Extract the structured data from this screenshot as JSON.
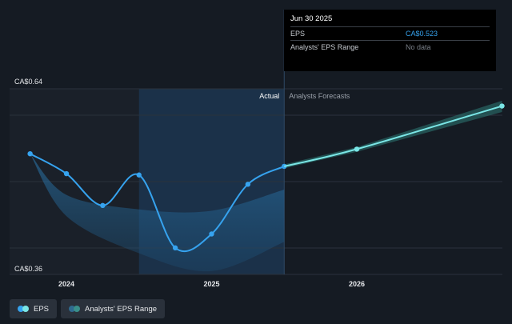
{
  "chart_data": {
    "type": "line",
    "y_top_label": "CA$0.64",
    "y_bottom_label": "CA$0.36",
    "ylim": [
      0.36,
      0.64
    ],
    "x_ticks": [
      {
        "label": "2024",
        "x": 2024.0
      },
      {
        "label": "2025",
        "x": 2025.0
      },
      {
        "label": "2026",
        "x": 2026.0
      }
    ],
    "xlim": [
      2023.6,
      2027.0
    ],
    "section_labels": {
      "actual": "Actual",
      "forecast": "Analysts Forecasts"
    },
    "divider_x": 2025.5,
    "series": [
      {
        "name": "EPS",
        "color": "#36a3ef",
        "points": [
          {
            "x": 2023.75,
            "y": 0.542
          },
          {
            "x": 2024.0,
            "y": 0.512
          },
          {
            "x": 2024.25,
            "y": 0.464
          },
          {
            "x": 2024.5,
            "y": 0.51
          },
          {
            "x": 2024.75,
            "y": 0.4
          },
          {
            "x": 2025.0,
            "y": 0.421
          },
          {
            "x": 2025.25,
            "y": 0.496
          },
          {
            "x": 2025.5,
            "y": 0.523
          }
        ]
      },
      {
        "name": "EPS forecast",
        "color": "#7ae6e6",
        "points": [
          {
            "x": 2025.5,
            "y": 0.523
          },
          {
            "x": 2026.0,
            "y": 0.549
          },
          {
            "x": 2027.0,
            "y": 0.614
          }
        ]
      }
    ],
    "range_band": {
      "upper": [
        {
          "x": 2023.75,
          "y": 0.542
        },
        {
          "x": 2024.0,
          "y": 0.48
        },
        {
          "x": 2024.5,
          "y": 0.458
        },
        {
          "x": 2025.0,
          "y": 0.456
        },
        {
          "x": 2025.5,
          "y": 0.488
        }
      ],
      "lower": [
        {
          "x": 2023.75,
          "y": 0.542
        },
        {
          "x": 2024.0,
          "y": 0.448
        },
        {
          "x": 2024.5,
          "y": 0.392
        },
        {
          "x": 2025.0,
          "y": 0.365
        },
        {
          "x": 2025.5,
          "y": 0.409
        }
      ]
    },
    "forecast_band": {
      "upper": [
        {
          "x": 2025.5,
          "y": 0.526
        },
        {
          "x": 2026.0,
          "y": 0.552
        },
        {
          "x": 2027.0,
          "y": 0.622
        }
      ],
      "lower": [
        {
          "x": 2025.5,
          "y": 0.52
        },
        {
          "x": 2026.0,
          "y": 0.545
        },
        {
          "x": 2027.0,
          "y": 0.605
        }
      ]
    },
    "highlight_range": [
      2024.5,
      2025.5
    ],
    "past_shade_range": [
      2023.6,
      2025.5
    ]
  },
  "tooltip": {
    "date": "Jun 30 2025",
    "rows": [
      {
        "label": "EPS",
        "value": "CA$0.523",
        "color": "#36a3ef"
      },
      {
        "label": "Analysts' EPS Range",
        "value": "No data",
        "color": "#7a8089"
      }
    ]
  },
  "legend": [
    {
      "label": "EPS",
      "color1": "#36a3ef",
      "color2": "#7ae6e6"
    },
    {
      "label": "Analysts' EPS Range",
      "color1": "#2f6b8f",
      "color2": "#3a8f8a"
    }
  ]
}
